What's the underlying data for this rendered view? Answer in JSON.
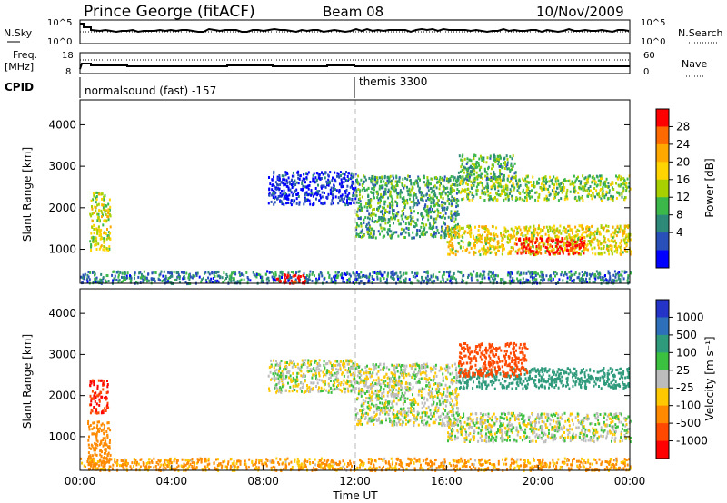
{
  "header": {
    "station": "Prince George (fitACF)",
    "beam": "Beam 08",
    "date": "10/Nov/2009"
  },
  "noise_panel": {
    "left_label": "N.Sky",
    "left_ticks": [
      "10^5",
      "10^0"
    ],
    "right_label": "N.Search",
    "right_ticks": [
      "10^5",
      "10^0"
    ]
  },
  "freq_panel": {
    "left_label_1": "Freq.",
    "left_label_2": "[MHz]",
    "left_ticks": [
      "18",
      "8"
    ],
    "right_label": "Nave",
    "right_ticks": [
      "60",
      "0"
    ]
  },
  "cpid": {
    "label": "CPID",
    "segments": [
      {
        "name": "normalsound (fast) -157",
        "start_h": 0,
        "end_h": 12
      },
      {
        "name": "themis 3300",
        "start_h": 12,
        "end_h": 24
      }
    ]
  },
  "power_colorbar": {
    "label": "Power [dB]",
    "ticks": [
      "28",
      "24",
      "20",
      "16",
      "12",
      "8",
      "4"
    ],
    "colors": [
      "#ff0000",
      "#ff6a00",
      "#ffa800",
      "#ffd400",
      "#a8d000",
      "#3cb84a",
      "#2d8a78",
      "#2950b8",
      "#0000ff"
    ]
  },
  "velocity_colorbar": {
    "label": "Velocity [m s⁻¹]",
    "ticks": [
      "1000",
      "500",
      "100",
      "25",
      "-25",
      "-100",
      "-500",
      "-1000"
    ],
    "colors": [
      "#2434c8",
      "#2d6fb8",
      "#2f9a7c",
      "#3cc040",
      "#bcbcbc",
      "#ffc800",
      "#ff8a00",
      "#ff4800",
      "#ff0000"
    ]
  },
  "chart_data": [
    {
      "type": "heatmap",
      "name": "power",
      "xlabel": "Time UT",
      "ylabel": "Slant Range [km]",
      "x_ticks": [
        "00:00",
        "04:00",
        "08:00",
        "12:00",
        "16:00",
        "20:00",
        "00:00"
      ],
      "y_ticks": [
        "1000",
        "2000",
        "3000",
        "4000"
      ],
      "xlim_hours": [
        0,
        24
      ],
      "ylim_km": [
        180,
        4600
      ],
      "scatter_regions": [
        {
          "t0": 0.4,
          "t1": 1.3,
          "r0": 1000,
          "r1": 2400,
          "level": 0.55
        },
        {
          "t0": 0.0,
          "t1": 24.0,
          "r0": 200,
          "r1": 500,
          "level": 0.25
        },
        {
          "t0": 8.5,
          "t1": 9.8,
          "r0": 200,
          "r1": 420,
          "level": 1.0
        },
        {
          "t0": 8.2,
          "t1": 12.0,
          "r0": 2100,
          "r1": 2900,
          "level": 0.1
        },
        {
          "t0": 12.0,
          "t1": 16.5,
          "r0": 1300,
          "r1": 2800,
          "level": 0.35
        },
        {
          "t0": 16.0,
          "t1": 24.0,
          "r0": 900,
          "r1": 1600,
          "level": 0.6
        },
        {
          "t0": 19.0,
          "t1": 22.0,
          "r0": 900,
          "r1": 1300,
          "level": 0.95
        },
        {
          "t0": 16.5,
          "t1": 24.0,
          "r0": 2200,
          "r1": 2800,
          "level": 0.45
        },
        {
          "t0": 16.5,
          "t1": 19.0,
          "r0": 2700,
          "r1": 3300,
          "level": 0.35
        }
      ]
    },
    {
      "type": "heatmap",
      "name": "velocity",
      "xlabel": "Time UT",
      "ylabel": "Slant Range [km]",
      "x_ticks": [
        "00:00",
        "04:00",
        "08:00",
        "12:00",
        "16:00",
        "20:00",
        "00:00"
      ],
      "y_ticks": [
        "1000",
        "2000",
        "3000",
        "4000"
      ],
      "xlim_hours": [
        0,
        24
      ],
      "ylim_km": [
        180,
        4600
      ],
      "scatter_regions": [
        {
          "t0": 0.4,
          "t1": 1.2,
          "r0": 1600,
          "r1": 2400,
          "velocity": -700
        },
        {
          "t0": 0.3,
          "t1": 1.3,
          "r0": 200,
          "r1": 1400,
          "velocity": -150
        },
        {
          "t0": 0.0,
          "t1": 24.0,
          "r0": 200,
          "r1": 500,
          "velocity": -80
        },
        {
          "t0": 8.2,
          "t1": 12.0,
          "r0": 2100,
          "r1": 2900,
          "velocity": 0
        },
        {
          "t0": 12.0,
          "t1": 16.5,
          "r0": 1300,
          "r1": 2800,
          "velocity": 0
        },
        {
          "t0": 16.0,
          "t1": 24.0,
          "r0": 900,
          "r1": 1600,
          "velocity": 0
        },
        {
          "t0": 16.5,
          "t1": 24.0,
          "r0": 2200,
          "r1": 2700,
          "velocity": 200
        },
        {
          "t0": 16.5,
          "t1": 19.5,
          "r0": 2500,
          "r1": 3300,
          "velocity": -400
        }
      ]
    }
  ]
}
